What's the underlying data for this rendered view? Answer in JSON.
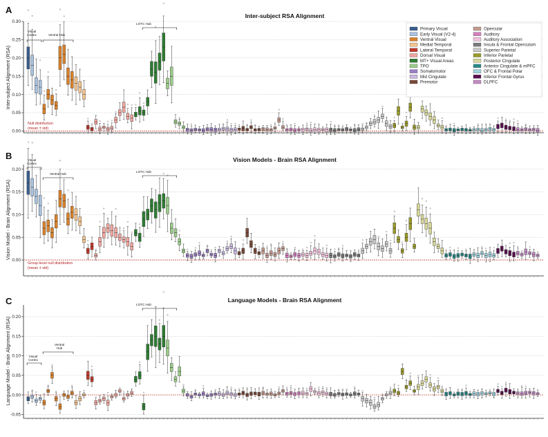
{
  "legend": [
    {
      "label": "Primary Visual",
      "color": "#3a5f8f"
    },
    {
      "label": "Early Visual (V2-4)",
      "color": "#a9c3df"
    },
    {
      "label": "Ventral Visual",
      "color": "#d9822b"
    },
    {
      "label": "Medial Temporal",
      "color": "#f4c58e"
    },
    {
      "label": "Lateral Temporal",
      "color": "#c0392b"
    },
    {
      "label": "Dorsal Visual",
      "color": "#f1a7a0"
    },
    {
      "label": "MT+ Visual Areas",
      "color": "#2e7d32"
    },
    {
      "label": "TPO",
      "color": "#9ccc8a"
    },
    {
      "label": "Somatomotor",
      "color": "#9b7fc4"
    },
    {
      "label": "Mid Cingulate",
      "color": "#c9b8e0"
    },
    {
      "label": "Premotor",
      "color": "#7a4a3a"
    },
    {
      "label": "Opercular",
      "color": "#c49a8e"
    },
    {
      "label": "Auditory",
      "color": "#d67fc0"
    },
    {
      "label": "Auditory Association",
      "color": "#f3c2dd"
    },
    {
      "label": "Insula & Frontal Operculum",
      "color": "#7a7a7a"
    },
    {
      "label": "Superior Parietal",
      "color": "#c8c8c8"
    },
    {
      "label": "Inferior Parietal",
      "color": "#9a9a2a"
    },
    {
      "label": "Posterior Cingulate",
      "color": "#d8d89a"
    },
    {
      "label": "Anterior Cingulate & mPFC",
      "color": "#2a8a8a"
    },
    {
      "label": "OFC & Frontal Polar",
      "color": "#9fd3e0"
    },
    {
      "label": "Inferior Frontal Gyrus",
      "color": "#5a1050"
    },
    {
      "label": "DLPFC",
      "color": "#c48ac4"
    }
  ],
  "panels": [
    {
      "letter": "A",
      "title": "Inter-subject RSA Alignment",
      "ylabel": "Inter-subject Alignment (RSA)",
      "null_label_1": "Null distribution",
      "null_label_2": "(mean ± std)",
      "brackets": [
        {
          "label_1": "Visual",
          "label_2": "Cortex"
        },
        {
          "label_1": "Ventral Hub",
          "label_2": ""
        },
        {
          "label_1": "LOTC Hub",
          "label_2": ""
        }
      ]
    },
    {
      "letter": "B",
      "title": "Vision Models - Brain RSA Alignment",
      "ylabel": "Vision Model - Brain Alignment (RSA)",
      "null_label_1": "Group-level null distribution",
      "null_label_2": "(mean ± std)",
      "brackets": [
        {
          "label_1": "Visual",
          "label_2": "Cortex"
        },
        {
          "label_1": "Ventral Hub",
          "label_2": ""
        },
        {
          "label_1": "LOTC Hub",
          "label_2": ""
        }
      ]
    },
    {
      "letter": "C",
      "title": "Language Models - Brain RSA Alignment",
      "ylabel": "Language Model - Brain Alignment (RSA)",
      "null_label_1": "",
      "null_label_2": "",
      "brackets": [
        {
          "label_1": "Visual",
          "label_2": "Cortex"
        },
        {
          "label_1": "Ventral",
          "label_2": "Hub"
        },
        {
          "label_1": "LOTC Hub",
          "label_2": ""
        }
      ]
    }
  ],
  "chart_data": [
    {
      "type": "box",
      "title": "Inter-subject RSA Alignment",
      "ylabel": "Inter-subject Alignment (RSA)",
      "ylim": [
        -0.005,
        0.3
      ],
      "yticks": [
        0.0,
        0.05,
        0.1,
        0.15,
        0.2,
        0.25,
        0.3
      ],
      "grid": true,
      "legend_position": "top-right",
      "null_mean": 0.0,
      "region_groups": [
        {
          "group": "Primary Visual",
          "medians": [
            0.2
          ]
        },
        {
          "group": "Early Visual (V2-4)",
          "medians": [
            0.18,
            0.125,
            0.12
          ]
        },
        {
          "group": "Ventral Visual",
          "medians": [
            0.06,
            0.1,
            0.085,
            0.07,
            0.2,
            0.21,
            0.15,
            0.14
          ]
        },
        {
          "group": "Medial Temporal",
          "medians": [
            0.13,
            0.12,
            0.1
          ]
        },
        {
          "group": "Lateral Temporal",
          "medians": [
            0.01,
            0.005
          ]
        },
        {
          "group": "Dorsal Visual",
          "medians": [
            0.025,
            0.005,
            0.01,
            0.005,
            0.008,
            0.03,
            0.05,
            0.065,
            0.04,
            0.035
          ]
        },
        {
          "group": "MT+ Visual Areas",
          "medians": [
            0.045,
            0.055,
            0.05,
            0.08,
            0.17,
            0.16,
            0.19,
            0.23
          ]
        },
        {
          "group": "TPO",
          "medians": [
            0.13,
            0.15,
            0.025,
            0.02,
            0.01
          ]
        },
        {
          "group": "Somatomotor",
          "medians": [
            0.003,
            0.002,
            0.004,
            0.003,
            0.002,
            0.005,
            0.004,
            0.003
          ]
        },
        {
          "group": "Mid Cingulate",
          "medians": [
            0.004,
            0.006,
            0.005,
            0.003,
            0.004
          ]
        },
        {
          "group": "Premotor",
          "medians": [
            0.005,
            0.007,
            0.004,
            0.01,
            0.003,
            0.004
          ]
        },
        {
          "group": "Opercular",
          "medians": [
            0.005,
            0.004,
            0.003,
            0.008,
            0.03,
            0.01
          ]
        },
        {
          "group": "Auditory",
          "medians": [
            0.003,
            0.004,
            0.002,
            0.003
          ]
        },
        {
          "group": "Auditory Association",
          "medians": [
            0.003,
            0.005,
            0.002,
            0.004,
            0.003,
            0.004,
            0.003
          ]
        },
        {
          "group": "Insula & Frontal Operculum",
          "medians": [
            0.003,
            0.002,
            0.004,
            0.003,
            0.005,
            0.003,
            0.002,
            0.004
          ]
        },
        {
          "group": "Superior Parietal",
          "medians": [
            0.005,
            0.01,
            0.02,
            0.025,
            0.03,
            0.04,
            0.02,
            0.012
          ]
        },
        {
          "group": "Inferior Parietal",
          "medians": [
            0.015,
            0.055,
            0.01,
            0.02,
            0.065,
            0.01
          ]
        },
        {
          "group": "Posterior Cingulate",
          "medians": [
            0.01,
            0.06,
            0.05,
            0.04,
            0.03,
            0.015,
            0.01
          ]
        },
        {
          "group": "Anterior Cingulate & mPFC",
          "medians": [
            0.003,
            0.004,
            0.002,
            0.003,
            0.004,
            0.003,
            0.002
          ]
        },
        {
          "group": "OFC & Frontal Polar",
          "medians": [
            0.003,
            0.004,
            0.002,
            0.003,
            0.005,
            0.003
          ]
        },
        {
          "group": "Inferior Frontal Gyrus",
          "medians": [
            0.012,
            0.015,
            0.01,
            0.008,
            0.006
          ]
        },
        {
          "group": "DLPFC",
          "medians": [
            0.004,
            0.003,
            0.005,
            0.003,
            0.004,
            0.002
          ]
        }
      ]
    },
    {
      "type": "box",
      "title": "Vision Models - Brain RSA Alignment",
      "ylabel": "Vision Model - Brain Alignment (RSA)",
      "ylim": [
        -0.035,
        0.21
      ],
      "yticks": [
        0.0,
        0.05,
        0.1,
        0.15,
        0.2
      ],
      "grid": true,
      "null_mean": 0.0,
      "region_groups": [
        {
          "group": "Primary Visual",
          "medians": [
            0.17
          ]
        },
        {
          "group": "Early Visual (V2-4)",
          "medians": [
            0.16,
            0.14,
            0.12
          ]
        },
        {
          "group": "Ventral Visual",
          "medians": [
            0.07,
            0.075,
            0.06,
            0.085,
            0.135,
            0.13,
            0.09,
            0.105
          ]
        },
        {
          "group": "Medial Temporal",
          "medians": [
            0.1,
            0.085,
            0.045
          ]
        },
        {
          "group": "Lateral Temporal",
          "medians": [
            0.02,
            0.03
          ]
        },
        {
          "group": "Dorsal Visual",
          "medians": [
            0.01,
            0.04,
            0.06,
            0.07,
            0.065,
            0.06,
            0.05,
            0.045,
            0.04,
            0.03
          ]
        },
        {
          "group": "MT+ Visual Areas",
          "medians": [
            0.06,
            0.05,
            0.09,
            0.1,
            0.12,
            0.11,
            0.125,
            0.13
          ]
        },
        {
          "group": "TPO",
          "medians": [
            0.12,
            0.07,
            0.06,
            0.04,
            0.02
          ]
        },
        {
          "group": "Somatomotor",
          "medians": [
            0.01,
            0.008,
            0.012,
            0.015,
            0.01,
            0.02,
            0.012,
            0.01
          ]
        },
        {
          "group": "Mid Cingulate",
          "medians": [
            0.02,
            0.015,
            0.025,
            0.03,
            0.02
          ]
        },
        {
          "group": "Premotor",
          "medians": [
            0.015,
            0.02,
            0.06,
            0.035,
            0.02,
            0.015
          ]
        },
        {
          "group": "Opercular",
          "medians": [
            0.02,
            0.01,
            0.015,
            0.012,
            0.02,
            0.025
          ]
        },
        {
          "group": "Auditory",
          "medians": [
            0.01,
            0.008,
            0.012,
            0.01
          ]
        },
        {
          "group": "Auditory Association",
          "medians": [
            0.012,
            0.01,
            0.015,
            0.02,
            0.018,
            0.012,
            0.01
          ]
        },
        {
          "group": "Insula & Frontal Operculum",
          "medians": [
            0.01,
            0.008,
            0.012,
            0.009,
            0.01,
            0.008,
            0.012,
            0.01
          ]
        },
        {
          "group": "Superior Parietal",
          "medians": [
            0.02,
            0.03,
            0.04,
            0.045,
            0.03,
            0.025,
            0.035,
            0.02
          ]
        },
        {
          "group": "Inferior Parietal",
          "medians": [
            0.07,
            0.045,
            0.02,
            0.05,
            0.08,
            0.03
          ]
        },
        {
          "group": "Posterior Cingulate",
          "medians": [
            0.11,
            0.09,
            0.08,
            0.07,
            0.04,
            0.03,
            0.02
          ]
        },
        {
          "group": "Anterior Cingulate & mPFC",
          "medians": [
            0.01,
            0.012,
            0.008,
            0.01,
            0.012,
            0.01,
            0.008
          ]
        },
        {
          "group": "OFC & Frontal Polar",
          "medians": [
            0.012,
            0.01,
            0.015,
            0.01,
            0.012,
            0.01
          ]
        },
        {
          "group": "Inferior Frontal Gyrus",
          "medians": [
            0.02,
            0.025,
            0.018,
            0.015,
            0.012
          ]
        },
        {
          "group": "DLPFC",
          "medians": [
            0.015,
            0.012,
            0.018,
            0.015,
            0.012,
            0.01
          ]
        }
      ]
    },
    {
      "type": "box",
      "title": "Language Models - Brain RSA Alignment",
      "ylabel": "Language Model - Brain Alignment (RSA)",
      "ylim": [
        -0.06,
        0.23
      ],
      "yticks": [
        -0.05,
        0.0,
        0.05,
        0.1,
        0.15,
        0.2
      ],
      "grid": true,
      "null_mean": 0.0,
      "region_groups": [
        {
          "group": "Primary Visual",
          "medians": [
            -0.01
          ]
        },
        {
          "group": "Early Visual (V2-4)",
          "medians": [
            -0.005,
            -0.015,
            -0.01
          ]
        },
        {
          "group": "Ventral Visual",
          "medians": [
            -0.02,
            0.01,
            0.05,
            -0.01,
            -0.03,
            0.0,
            -0.005,
            0.005
          ]
        },
        {
          "group": "Medial Temporal",
          "medians": [
            -0.02,
            -0.01,
            0.0
          ]
        },
        {
          "group": "Lateral Temporal",
          "medians": [
            0.05,
            0.04
          ]
        },
        {
          "group": "Dorsal Visual",
          "medians": [
            -0.02,
            -0.015,
            -0.01,
            -0.02,
            -0.005,
            0.0,
            0.01,
            -0.01,
            0.0,
            0.005
          ]
        },
        {
          "group": "MT+ Visual Areas",
          "medians": [
            0.04,
            0.05,
            -0.03,
            0.11,
            0.14,
            0.15,
            0.13,
            0.15
          ]
        },
        {
          "group": "TPO",
          "medians": [
            0.12,
            0.07,
            0.04,
            0.06,
            0.01
          ]
        },
        {
          "group": "Somatomotor",
          "medians": [
            0.0,
            -0.005,
            0.002,
            0.0,
            0.003,
            -0.002,
            0.0,
            0.002
          ]
        },
        {
          "group": "Mid Cingulate",
          "medians": [
            0.003,
            0.0,
            0.005,
            0.002,
            0.0
          ]
        },
        {
          "group": "Premotor",
          "medians": [
            0.002,
            0.005,
            0.0,
            0.003,
            0.004,
            0.002
          ]
        },
        {
          "group": "Opercular",
          "medians": [
            0.005,
            0.002,
            0.003,
            0.0,
            0.004,
            0.01
          ]
        },
        {
          "group": "Auditory",
          "medians": [
            0.003,
            0.005,
            0.002,
            0.004
          ]
        },
        {
          "group": "Auditory Association",
          "medians": [
            0.005,
            0.003,
            0.015,
            0.008,
            0.004,
            0.006,
            0.003
          ]
        },
        {
          "group": "Insula & Frontal Operculum",
          "medians": [
            0.002,
            0.0,
            0.003,
            0.001,
            0.002,
            0.0,
            0.003,
            0.002
          ]
        },
        {
          "group": "Superior Parietal",
          "medians": [
            -0.01,
            -0.015,
            -0.02,
            -0.03,
            -0.025,
            -0.01,
            0.0,
            0.005
          ]
        },
        {
          "group": "Inferior Parietal",
          "medians": [
            0.01,
            0.005,
            0.06,
            0.02,
            0.03,
            0.01
          ]
        },
        {
          "group": "Posterior Cingulate",
          "medians": [
            0.02,
            0.03,
            0.04,
            0.025,
            0.015,
            0.02,
            0.01
          ]
        },
        {
          "group": "Anterior Cingulate & mPFC",
          "medians": [
            0.002,
            0.004,
            0.0,
            0.003,
            0.002,
            0.004,
            0.001
          ]
        },
        {
          "group": "OFC & Frontal Polar",
          "medians": [
            0.003,
            0.002,
            0.004,
            0.003,
            0.005,
            0.002
          ]
        },
        {
          "group": "Inferior Frontal Gyrus",
          "medians": [
            0.01,
            0.005,
            0.012,
            0.008,
            0.006
          ]
        },
        {
          "group": "DLPFC",
          "medians": [
            0.004,
            0.003,
            0.005,
            0.006,
            0.004,
            0.003
          ]
        }
      ]
    }
  ]
}
